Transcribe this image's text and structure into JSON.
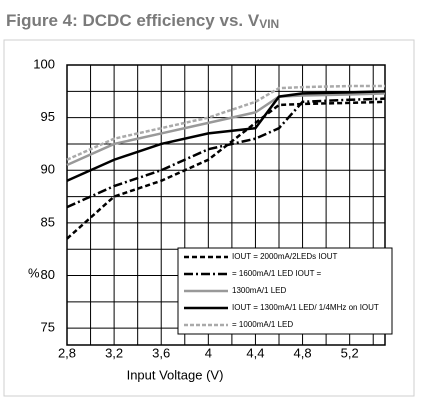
{
  "chart_data": {
    "type": "line",
    "title": "Figure 4: DCDC efficiency vs. V",
    "title_subscript": "VIN",
    "xlabel": "Input Voltage (V)",
    "ylabel": "%",
    "x": [
      2.8,
      3.2,
      3.6,
      4.0,
      4.4,
      4.6,
      4.8,
      5.2,
      5.5
    ],
    "series": [
      {
        "name": "IOUT = 2000mA/2LEDs  IOUT",
        "color": "#000000",
        "dash": "5,3",
        "values": [
          83.5,
          87.5,
          89,
          91,
          94.5,
          96.2,
          96.3,
          96.4,
          96.5
        ]
      },
      {
        "name": "= 1600mA/1 LED   IOUT =",
        "color": "#000000",
        "dash": "9,3,2,3",
        "values": [
          86.5,
          88.5,
          90,
          92,
          93,
          94,
          96.5,
          96.7,
          96.8
        ]
      },
      {
        "name": "1300mA/1 LED",
        "color": "#999999",
        "dash": "none",
        "values": [
          90.5,
          92.5,
          93.5,
          94.5,
          95.5,
          97,
          97.1,
          97.2,
          97.3
        ]
      },
      {
        "name": "IOUT = 1300mA/1 LED/ 1/4MHz on   IOUT",
        "color": "#000000",
        "dash": "none",
        "values": [
          89,
          91,
          92.5,
          93.5,
          94,
          97,
          97.3,
          97.4,
          97.5
        ]
      },
      {
        "name": "= 1000mA/1 LED",
        "color": "#aaaaaa",
        "dash": "4,2",
        "values": [
          91,
          93,
          94,
          95,
          96.5,
          97.8,
          97.9,
          98,
          98
        ]
      }
    ],
    "xlim": [
      2.8,
      5.5
    ],
    "ylim": [
      73.4,
      100
    ],
    "xticks": [
      {
        "value": 2.8,
        "label": "2,8"
      },
      {
        "value": 3.2,
        "label": "3,2"
      },
      {
        "value": 3.6,
        "label": "3,6"
      },
      4,
      {
        "value": 4.4,
        "label": "4,4"
      },
      {
        "value": 4.8,
        "label": "4,8"
      },
      {
        "value": 5.2,
        "label": "5,2"
      }
    ],
    "xgrid_minor": [
      3.0,
      3.4,
      3.8,
      4.2,
      4.6,
      5.0,
      5.4
    ],
    "yticks": [
      75,
      80,
      85,
      90,
      95,
      100
    ],
    "ygrid_minor": [
      77.5,
      82.5,
      87.5,
      92.5,
      97.5
    ],
    "grid": true
  }
}
